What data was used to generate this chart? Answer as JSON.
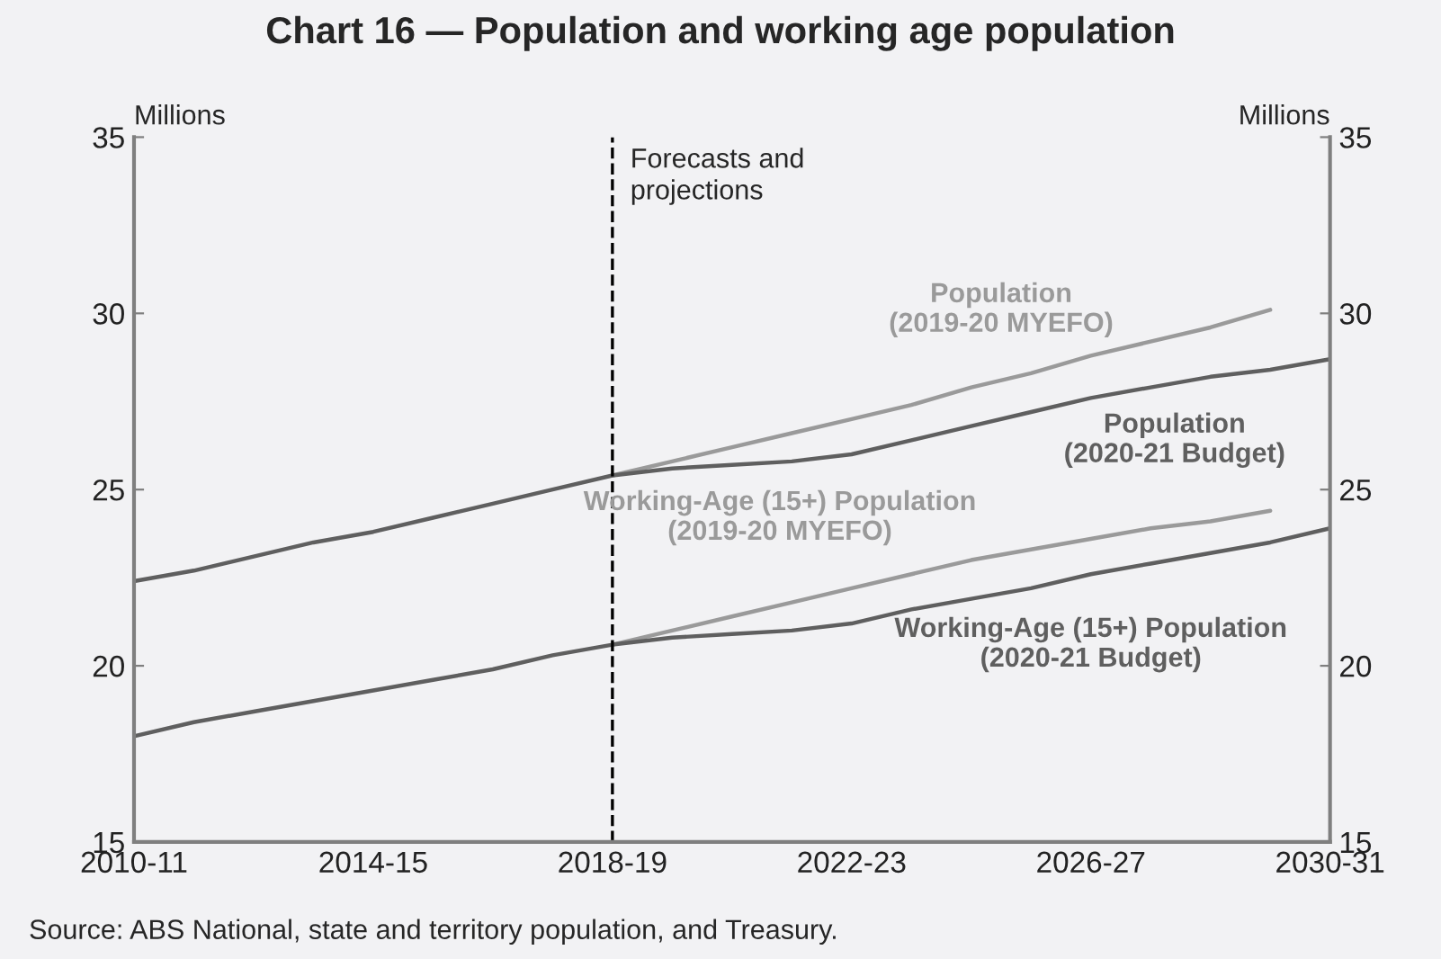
{
  "chart_data": {
    "type": "line",
    "title": "Chart 16 — Population and working age population",
    "ylabel": "Millions",
    "y2label": "Millions",
    "categories": [
      "2010-11",
      null,
      null,
      null,
      "2014-15",
      null,
      null,
      null,
      "2018-19",
      null,
      null,
      null,
      "2022-23",
      null,
      null,
      null,
      "2026-27",
      null,
      null,
      null,
      "2030-31"
    ],
    "series": [
      {
        "name": "Population\n(2019-20 MYEFO)",
        "color": "#9a9a9a",
        "values": [
          null,
          null,
          null,
          null,
          null,
          null,
          null,
          null,
          25.4,
          25.8,
          26.2,
          26.6,
          27.0,
          27.4,
          27.9,
          28.3,
          28.8,
          29.2,
          29.6,
          30.1,
          null
        ]
      },
      {
        "name": "Population\n(2020-21 Budget)",
        "color": "#5f5f5f",
        "values": [
          22.4,
          22.7,
          23.1,
          23.5,
          23.8,
          24.2,
          24.6,
          25.0,
          25.4,
          25.6,
          25.7,
          25.8,
          26.0,
          26.4,
          26.8,
          27.2,
          27.6,
          27.9,
          28.2,
          28.4,
          28.7
        ]
      },
      {
        "name": "Working-Age (15+) Population\n(2019-20 MYEFO)",
        "color": "#9a9a9a",
        "values": [
          null,
          null,
          null,
          null,
          null,
          null,
          null,
          null,
          20.6,
          21.0,
          21.4,
          21.8,
          22.2,
          22.6,
          23.0,
          23.3,
          23.6,
          23.9,
          24.1,
          24.4,
          null
        ]
      },
      {
        "name": "Working-Age (15+) Population\n(2020-21 Budget)",
        "color": "#5f5f5f",
        "values": [
          18.0,
          18.4,
          18.7,
          19.0,
          19.3,
          19.6,
          19.9,
          20.3,
          20.6,
          20.8,
          20.9,
          21.0,
          21.2,
          21.6,
          21.9,
          22.2,
          22.6,
          22.9,
          23.2,
          23.5,
          23.9
        ]
      }
    ],
    "ref_lines": [
      {
        "axis": "x",
        "value": "2018-19",
        "label": "Forecasts and\nprojections",
        "color": "#000000",
        "line_style": "dashed"
      }
    ],
    "ylim": [
      15,
      35
    ],
    "yticks": [
      15,
      20,
      25,
      30,
      35
    ],
    "y2lim": [
      15,
      35
    ],
    "y2ticks": [
      15,
      20,
      25,
      30,
      35
    ],
    "grid": false,
    "legend": false,
    "marker": "none",
    "line_style": "solid",
    "annotations": [
      "Source: ABS National, state and territory population, and Treasury."
    ]
  }
}
